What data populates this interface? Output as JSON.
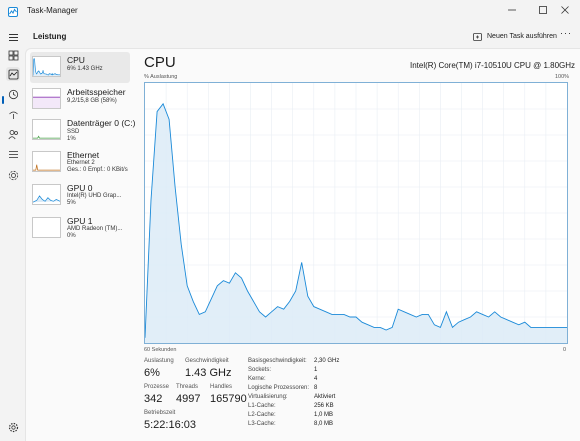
{
  "window": {
    "title": "Task-Manager",
    "min_icon": "minimize-icon",
    "max_icon": "maximize-icon",
    "close_icon": "close-icon"
  },
  "header": {
    "section": "Leistung",
    "run_task": "Neuen Task ausführen",
    "more": "···"
  },
  "resources": [
    {
      "name": "CPU",
      "sub1": "6%  1.43 GHz",
      "sub2": "",
      "sub3": "",
      "color": "#1b8ad8"
    },
    {
      "name": "Arbeitsspeicher",
      "sub1": "9,2/15,8 GB (58%)",
      "sub2": "",
      "sub3": "",
      "color": "#8e3bb5"
    },
    {
      "name": "Datenträger 0 (C:)",
      "sub1": "SSD",
      "sub2": "1%",
      "sub3": "",
      "color": "#4aa24a"
    },
    {
      "name": "Ethernet",
      "sub1": "Ethernet 2",
      "sub2": "Ges.: 0 Empf.: 0 KBit/s",
      "sub3": "",
      "color": "#c0701e"
    },
    {
      "name": "GPU 0",
      "sub1": "Intel(R) UHD Grap...",
      "sub2": "5%",
      "sub3": "",
      "color": "#1b8ad8"
    },
    {
      "name": "GPU 1",
      "sub1": "AMD Radeon (TM)...",
      "sub2": "0%",
      "sub3": "",
      "color": "#1b8ad8"
    }
  ],
  "cpu": {
    "title": "CPU",
    "model": "Intel(R) Core(TM) i7-10510U CPU @ 1.80GHz",
    "axis_label": "% Auslastung",
    "axis_max": "100%",
    "axis_time": "60 Sekunden",
    "axis_min": "0",
    "graph_color": "#1b8ad8",
    "usage_history": [
      2,
      55,
      89,
      92,
      86,
      60,
      38,
      22,
      16,
      11,
      12,
      17,
      22,
      24,
      23,
      27,
      25,
      20,
      16,
      12,
      10,
      12,
      14,
      13,
      16,
      20,
      31,
      18,
      14,
      13,
      12,
      11,
      11,
      11,
      10,
      10,
      8,
      7,
      6,
      6,
      5,
      6,
      13,
      12,
      11,
      10,
      11,
      11,
      7,
      6,
      12,
      6,
      8,
      9,
      10,
      12,
      11,
      10,
      12,
      10,
      9,
      8,
      7,
      8,
      6,
      6,
      6,
      6,
      6,
      6,
      6
    ]
  },
  "stats": {
    "auslastung_label": "Auslastung",
    "auslastung": "6%",
    "geschw_label": "Geschwindigkeit",
    "geschw": "1.43 GHz",
    "prozesse_label": "Prozesse",
    "prozesse": "342",
    "threads_label": "Threads",
    "threads": "4997",
    "handles_label": "Handles",
    "handles": "165790",
    "betriebszeit_label": "Betriebszeit",
    "betriebszeit": "5:22:16:03"
  },
  "specs": [
    {
      "label": "Basisgeschwindigkeit:",
      "value": "2,30 GHz"
    },
    {
      "label": "Sockets:",
      "value": "1"
    },
    {
      "label": "Kerne:",
      "value": "4"
    },
    {
      "label": "Logische Prozessoren:",
      "value": "8"
    },
    {
      "label": "Virtualisierung:",
      "value": "Aktiviert"
    },
    {
      "label": "L1-Cache:",
      "value": "256 KB"
    },
    {
      "label": "L2-Cache:",
      "value": "1,0 MB"
    },
    {
      "label": "L3-Cache:",
      "value": "8,0 MB"
    }
  ]
}
